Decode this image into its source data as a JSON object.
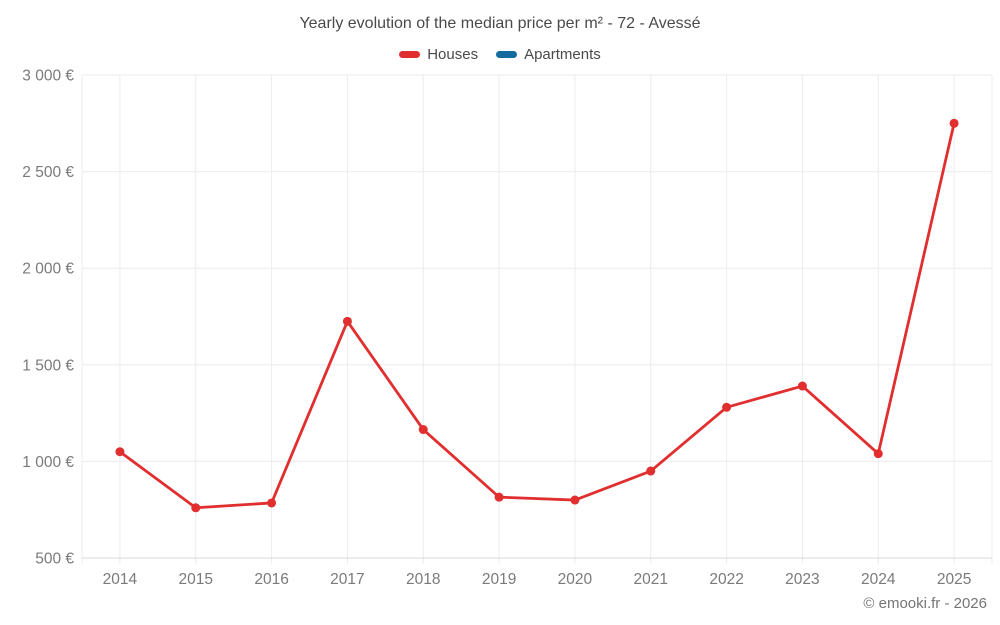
{
  "title": "Yearly evolution of the median price per m² - 72 - Avessé",
  "legend": {
    "items": [
      {
        "label": "Houses",
        "color": "#e12f2f"
      },
      {
        "label": "Apartments",
        "color": "#146c9e"
      }
    ]
  },
  "footer": {
    "copyright": "© emooki.fr - 2026"
  },
  "chart_data": {
    "type": "line",
    "title": "Yearly evolution of the median price per m² - 72 - Avessé",
    "categories": [
      "2014",
      "2015",
      "2016",
      "2017",
      "2018",
      "2019",
      "2020",
      "2021",
      "2022",
      "2023",
      "2024",
      "2025"
    ],
    "series": [
      {
        "name": "Houses",
        "color": "#e12f2f",
        "values": [
          1050,
          760,
          785,
          1725,
          1165,
          815,
          800,
          950,
          1280,
          1390,
          1040,
          2750
        ]
      },
      {
        "name": "Apartments",
        "color": "#146c9e",
        "values": []
      }
    ],
    "xlabel": "",
    "ylabel": "",
    "ylim": [
      500,
      3000
    ],
    "yticks": [
      {
        "value": 500,
        "label": "500 €"
      },
      {
        "value": 1000,
        "label": "1 000 €"
      },
      {
        "value": 1500,
        "label": "1 500 €"
      },
      {
        "value": 2000,
        "label": "2 000 €"
      },
      {
        "value": 2500,
        "label": "2 500 €"
      },
      {
        "value": 3000,
        "label": "3 000 €"
      }
    ],
    "grid": true,
    "legend_position": "top",
    "colors": {
      "grid": "#ececec",
      "axis": "#d8d8d8",
      "tick_text": "#7a7a7a"
    }
  }
}
